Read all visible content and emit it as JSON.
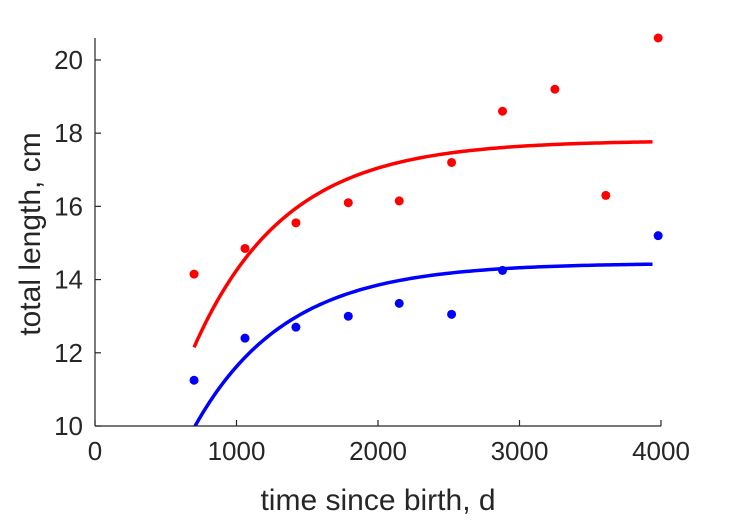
{
  "chart_data": {
    "type": "scatter",
    "xlabel": "time since birth, d",
    "ylabel": "total length, cm",
    "xlim": [
      0,
      4000
    ],
    "ylim": [
      10,
      20.6
    ],
    "xticks": [
      0,
      1000,
      2000,
      3000,
      4000
    ],
    "yticks": [
      10,
      12,
      14,
      16,
      18,
      20
    ],
    "grid": false,
    "series": [
      {
        "color": "#ff0000",
        "points": [
          {
            "x": 700,
            "y": 14.15
          },
          {
            "x": 1060,
            "y": 14.85
          },
          {
            "x": 1420,
            "y": 15.55
          },
          {
            "x": 1790,
            "y": 16.1
          },
          {
            "x": 2150,
            "y": 16.15
          },
          {
            "x": 2520,
            "y": 17.2
          },
          {
            "x": 2880,
            "y": 18.6
          },
          {
            "x": 3250,
            "y": 19.2
          },
          {
            "x": 3610,
            "y": 16.3
          },
          {
            "x": 3980,
            "y": 20.6
          }
        ],
        "curve": {
          "x_start": 700,
          "x_end": 3940,
          "asymptote": 17.8,
          "y_start": 12.15,
          "rate": 0.00155
        }
      },
      {
        "color": "#0000ff",
        "points": [
          {
            "x": 700,
            "y": 11.25
          },
          {
            "x": 1060,
            "y": 12.4
          },
          {
            "x": 1420,
            "y": 12.7
          },
          {
            "x": 1790,
            "y": 13.0
          },
          {
            "x": 2150,
            "y": 13.35
          },
          {
            "x": 2520,
            "y": 13.05
          },
          {
            "x": 2880,
            "y": 14.25
          },
          {
            "x": 3980,
            "y": 15.2
          }
        ],
        "curve": {
          "x_start": 700,
          "x_end": 3940,
          "asymptote": 14.45,
          "y_start": 9.95,
          "rate": 0.00155
        }
      }
    ]
  }
}
